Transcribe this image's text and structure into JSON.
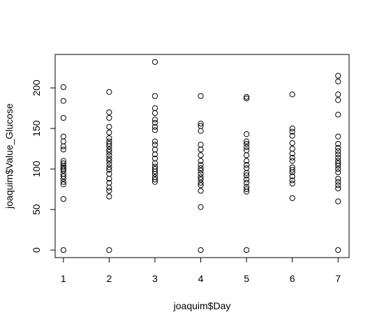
{
  "chart_data": {
    "type": "scatter",
    "title": "",
    "xlabel": "joaquim$Day",
    "ylabel": "joaquim$Value_Glucose",
    "xlim": [
      0.82,
      7.24
    ],
    "ylim": [
      -9.3,
      241.3
    ],
    "x_ticks": [
      1,
      2,
      3,
      4,
      5,
      6,
      7
    ],
    "y_ticks": [
      0,
      50,
      100,
      150,
      200
    ],
    "grid": false,
    "legend": "none",
    "marker": "open-circle",
    "points": [
      {
        "x": 1,
        "y": 201
      },
      {
        "x": 1,
        "y": 184
      },
      {
        "x": 1,
        "y": 163
      },
      {
        "x": 1,
        "y": 140
      },
      {
        "x": 1,
        "y": 134
      },
      {
        "x": 1,
        "y": 128
      },
      {
        "x": 1,
        "y": 124
      },
      {
        "x": 1,
        "y": 110
      },
      {
        "x": 1,
        "y": 107
      },
      {
        "x": 1,
        "y": 104
      },
      {
        "x": 1,
        "y": 102
      },
      {
        "x": 1,
        "y": 100
      },
      {
        "x": 1,
        "y": 98
      },
      {
        "x": 1,
        "y": 94
      },
      {
        "x": 1,
        "y": 91
      },
      {
        "x": 1,
        "y": 88
      },
      {
        "x": 1,
        "y": 84
      },
      {
        "x": 1,
        "y": 81
      },
      {
        "x": 1,
        "y": 63
      },
      {
        "x": 1,
        "y": 0
      },
      {
        "x": 2,
        "y": 195
      },
      {
        "x": 2,
        "y": 170
      },
      {
        "x": 2,
        "y": 163
      },
      {
        "x": 2,
        "y": 152
      },
      {
        "x": 2,
        "y": 145
      },
      {
        "x": 2,
        "y": 138
      },
      {
        "x": 2,
        "y": 134
      },
      {
        "x": 2,
        "y": 131
      },
      {
        "x": 2,
        "y": 128
      },
      {
        "x": 2,
        "y": 124
      },
      {
        "x": 2,
        "y": 121
      },
      {
        "x": 2,
        "y": 117
      },
      {
        "x": 2,
        "y": 113
      },
      {
        "x": 2,
        "y": 110
      },
      {
        "x": 2,
        "y": 106
      },
      {
        "x": 2,
        "y": 102
      },
      {
        "x": 2,
        "y": 99
      },
      {
        "x": 2,
        "y": 94
      },
      {
        "x": 2,
        "y": 88
      },
      {
        "x": 2,
        "y": 83
      },
      {
        "x": 2,
        "y": 77
      },
      {
        "x": 2,
        "y": 73
      },
      {
        "x": 2,
        "y": 66
      },
      {
        "x": 2,
        "y": 0
      },
      {
        "x": 3,
        "y": 232
      },
      {
        "x": 3,
        "y": 190
      },
      {
        "x": 3,
        "y": 175
      },
      {
        "x": 3,
        "y": 169
      },
      {
        "x": 3,
        "y": 161
      },
      {
        "x": 3,
        "y": 157
      },
      {
        "x": 3,
        "y": 152
      },
      {
        "x": 3,
        "y": 148
      },
      {
        "x": 3,
        "y": 134
      },
      {
        "x": 3,
        "y": 130
      },
      {
        "x": 3,
        "y": 124
      },
      {
        "x": 3,
        "y": 118
      },
      {
        "x": 3,
        "y": 113
      },
      {
        "x": 3,
        "y": 107
      },
      {
        "x": 3,
        "y": 103
      },
      {
        "x": 3,
        "y": 100
      },
      {
        "x": 3,
        "y": 97
      },
      {
        "x": 3,
        "y": 94
      },
      {
        "x": 3,
        "y": 90
      },
      {
        "x": 3,
        "y": 87
      },
      {
        "x": 3,
        "y": 84
      },
      {
        "x": 4,
        "y": 190
      },
      {
        "x": 4,
        "y": 156
      },
      {
        "x": 4,
        "y": 153
      },
      {
        "x": 4,
        "y": 147
      },
      {
        "x": 4,
        "y": 130
      },
      {
        "x": 4,
        "y": 124
      },
      {
        "x": 4,
        "y": 117
      },
      {
        "x": 4,
        "y": 110
      },
      {
        "x": 4,
        "y": 105
      },
      {
        "x": 4,
        "y": 101
      },
      {
        "x": 4,
        "y": 98
      },
      {
        "x": 4,
        "y": 94
      },
      {
        "x": 4,
        "y": 90
      },
      {
        "x": 4,
        "y": 87
      },
      {
        "x": 4,
        "y": 83
      },
      {
        "x": 4,
        "y": 80
      },
      {
        "x": 4,
        "y": 73
      },
      {
        "x": 4,
        "y": 53
      },
      {
        "x": 4,
        "y": 0
      },
      {
        "x": 5,
        "y": 189
      },
      {
        "x": 5,
        "y": 187
      },
      {
        "x": 5,
        "y": 143
      },
      {
        "x": 5,
        "y": 134
      },
      {
        "x": 5,
        "y": 131
      },
      {
        "x": 5,
        "y": 127
      },
      {
        "x": 5,
        "y": 123
      },
      {
        "x": 5,
        "y": 117
      },
      {
        "x": 5,
        "y": 110
      },
      {
        "x": 5,
        "y": 105
      },
      {
        "x": 5,
        "y": 101
      },
      {
        "x": 5,
        "y": 95
      },
      {
        "x": 5,
        "y": 92
      },
      {
        "x": 5,
        "y": 87
      },
      {
        "x": 5,
        "y": 83
      },
      {
        "x": 5,
        "y": 78
      },
      {
        "x": 5,
        "y": 75
      },
      {
        "x": 5,
        "y": 72
      },
      {
        "x": 5,
        "y": 0
      },
      {
        "x": 6,
        "y": 192
      },
      {
        "x": 6,
        "y": 150
      },
      {
        "x": 6,
        "y": 146
      },
      {
        "x": 6,
        "y": 141
      },
      {
        "x": 6,
        "y": 132
      },
      {
        "x": 6,
        "y": 125
      },
      {
        "x": 6,
        "y": 119
      },
      {
        "x": 6,
        "y": 114
      },
      {
        "x": 6,
        "y": 110
      },
      {
        "x": 6,
        "y": 102
      },
      {
        "x": 6,
        "y": 99
      },
      {
        "x": 6,
        "y": 96
      },
      {
        "x": 6,
        "y": 91
      },
      {
        "x": 6,
        "y": 86
      },
      {
        "x": 6,
        "y": 82
      },
      {
        "x": 6,
        "y": 64
      },
      {
        "x": 7,
        "y": 215
      },
      {
        "x": 7,
        "y": 208
      },
      {
        "x": 7,
        "y": 192
      },
      {
        "x": 7,
        "y": 185
      },
      {
        "x": 7,
        "y": 167
      },
      {
        "x": 7,
        "y": 140
      },
      {
        "x": 7,
        "y": 131
      },
      {
        "x": 7,
        "y": 126
      },
      {
        "x": 7,
        "y": 122
      },
      {
        "x": 7,
        "y": 118
      },
      {
        "x": 7,
        "y": 114
      },
      {
        "x": 7,
        "y": 110
      },
      {
        "x": 7,
        "y": 107
      },
      {
        "x": 7,
        "y": 104
      },
      {
        "x": 7,
        "y": 100
      },
      {
        "x": 7,
        "y": 96
      },
      {
        "x": 7,
        "y": 88
      },
      {
        "x": 7,
        "y": 84
      },
      {
        "x": 7,
        "y": 80
      },
      {
        "x": 7,
        "y": 76
      },
      {
        "x": 7,
        "y": 60
      },
      {
        "x": 7,
        "y": 0
      }
    ]
  }
}
